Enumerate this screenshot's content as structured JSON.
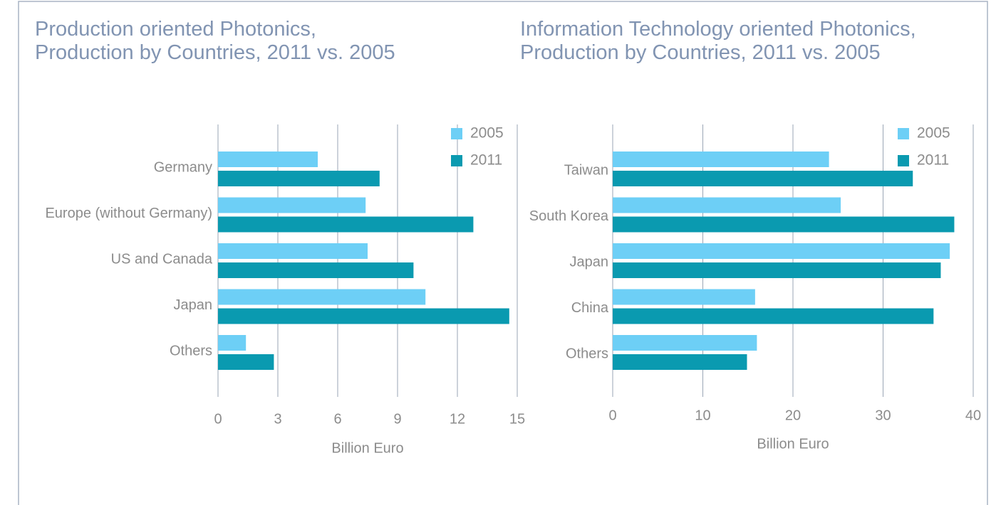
{
  "chart_data": [
    {
      "type": "bar",
      "orientation": "horizontal",
      "title": [
        "Production oriented Photonics,",
        "Production by Countries, 2011 vs. 2005"
      ],
      "categories": [
        "Germany",
        "Europe (without Germany)",
        "US and Canada",
        "Japan",
        "Others"
      ],
      "series": [
        {
          "name": "2005",
          "color": "#6dcff6",
          "values": [
            5.0,
            7.4,
            7.5,
            10.4,
            1.4
          ]
        },
        {
          "name": "2011",
          "color": "#0a9ab0",
          "values": [
            8.1,
            12.8,
            9.8,
            14.6,
            2.8
          ]
        }
      ],
      "xlim": [
        0,
        15
      ],
      "xticks": [
        0,
        3,
        6,
        9,
        12,
        15
      ],
      "xlabel": "Billion Euro",
      "grid": true,
      "legend": "upper right"
    },
    {
      "type": "bar",
      "orientation": "horizontal",
      "title": [
        "Information Technology oriented Photonics,",
        "Production by Countries, 2011 vs. 2005"
      ],
      "categories": [
        "Taiwan",
        "South Korea",
        "Japan",
        "China",
        "Others"
      ],
      "series": [
        {
          "name": "2005",
          "color": "#6dcff6",
          "values": [
            24.0,
            25.3,
            37.4,
            15.8,
            16.0
          ]
        },
        {
          "name": "2011",
          "color": "#0a9ab0",
          "values": [
            33.3,
            37.9,
            36.4,
            35.6,
            14.9
          ]
        }
      ],
      "xlim": [
        0,
        40
      ],
      "xticks": [
        0,
        10,
        20,
        30,
        40
      ],
      "xlabel": "Billion Euro",
      "grid": true,
      "legend": "upper right"
    }
  ]
}
